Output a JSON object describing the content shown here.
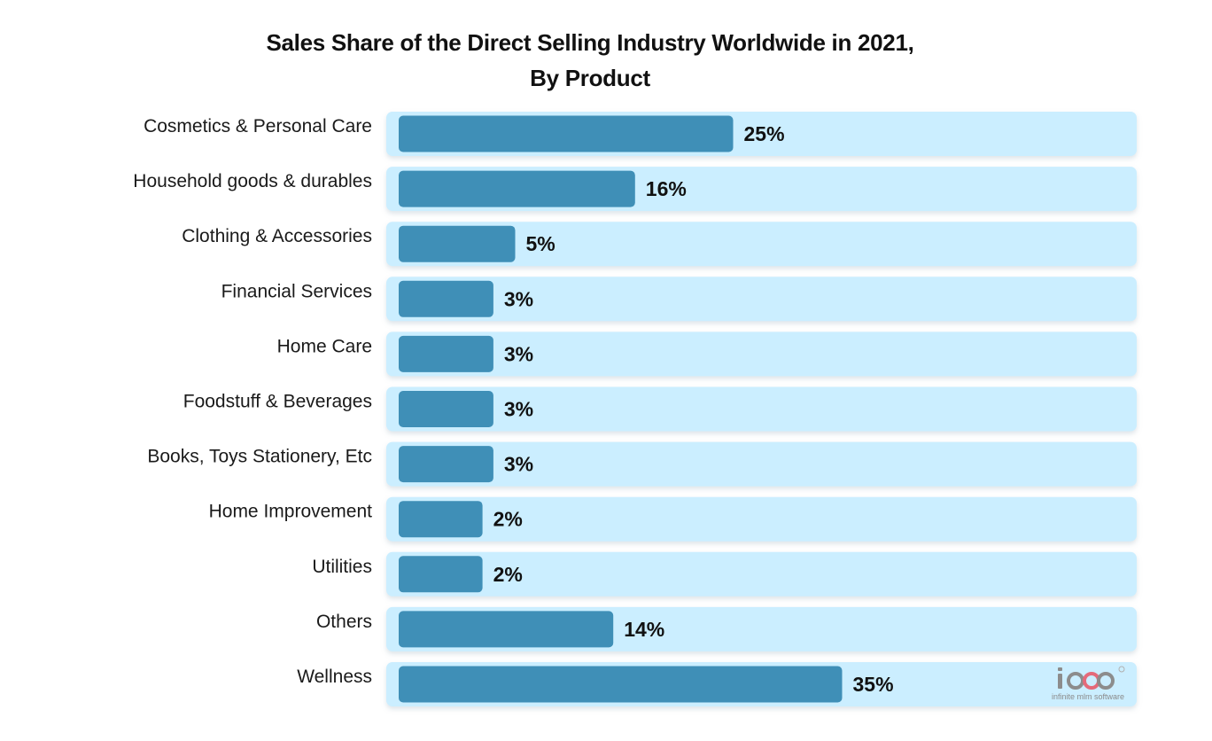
{
  "chart_data": {
    "type": "bar",
    "orientation": "horizontal",
    "title_line1": "Sales Share of the Direct Selling Industry Worldwide in 2021,",
    "title_line2": "By Product",
    "categories": [
      "Cosmetics & Personal Care",
      "Household goods & durables",
      "Clothing & Accessories",
      "Financial Services",
      "Home Care",
      "Foodstuff & Beverages",
      "Books, Toys Stationery, Etc",
      "Home Improvement",
      "Utilities",
      "Others",
      "Wellness"
    ],
    "values": [
      25,
      16,
      5,
      3,
      3,
      3,
      3,
      2,
      2,
      14,
      35
    ],
    "value_labels": [
      "25%",
      "16%",
      "5%",
      "3%",
      "3%",
      "3%",
      "3%",
      "2%",
      "2%",
      "14%",
      "35%"
    ],
    "grid": false,
    "legend": "none",
    "colors": {
      "bar": "#3f8fb7",
      "track": "#cbeeff",
      "text": "#111111"
    }
  },
  "watermark": {
    "mark": "ioo",
    "text": "infinite mlm software",
    "icon": "infinity-logo-icon"
  }
}
